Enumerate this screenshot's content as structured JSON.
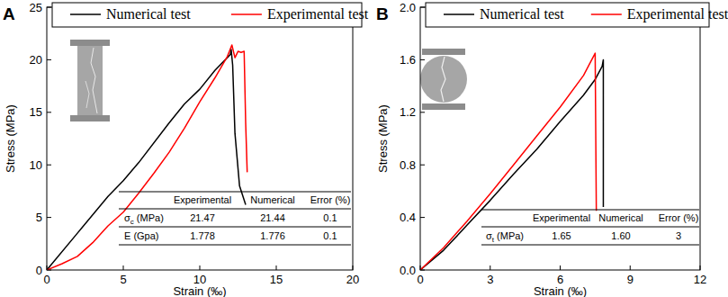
{
  "chart_data": [
    {
      "type": "line",
      "title": "A",
      "x_label": "Strain (‰)",
      "y_label": "Stress (MPa)",
      "xlim": [
        0,
        20
      ],
      "xticks": [
        0,
        5,
        10,
        15,
        20
      ],
      "ylim": [
        0,
        25
      ],
      "yticks": [
        0,
        5,
        10,
        15,
        20,
        25
      ],
      "legend": "top",
      "series": [
        {
          "name": "Numerical test",
          "color": "#000000",
          "x": [
            0,
            2,
            4,
            5,
            6,
            8,
            9,
            10,
            11,
            12,
            12.05,
            12.15,
            12.3,
            12.6,
            13.0
          ],
          "values": [
            0,
            3.5,
            7,
            8.5,
            10.2,
            14,
            15.8,
            17.2,
            19,
            20.5,
            21.0,
            19.5,
            13,
            8,
            6.2
          ]
        },
        {
          "name": "Experimental test",
          "color": "#ff0000",
          "x": [
            0,
            1,
            2,
            3,
            4,
            5,
            6,
            7,
            8,
            9,
            10,
            11,
            11.8,
            12.1,
            12.3,
            12.5,
            12.7,
            12.9,
            13.0,
            13.1
          ],
          "values": [
            0,
            0.6,
            1.3,
            2.6,
            4.2,
            5.5,
            7.3,
            9.2,
            11.2,
            13.5,
            16,
            18.3,
            20.3,
            21.4,
            20.2,
            20.8,
            20.7,
            20.8,
            14,
            9.3
          ]
        }
      ],
      "table": {
        "columns": [
          "Experimental",
          "Numerical",
          "Error (%)"
        ],
        "rows": [
          {
            "label": {
              "main": "σ",
              "sub": "c",
              "rest": " (MPa)"
            },
            "values": [
              21.47,
              21.44,
              0.1
            ]
          },
          {
            "label": {
              "main": "E (Gpa)"
            },
            "values": [
              1.778,
              1.776,
              0.1
            ]
          }
        ]
      }
    },
    {
      "type": "line",
      "title": "B",
      "x_label": "Strain (‰)",
      "y_label": "Stress (MPa)",
      "xlim": [
        0,
        12
      ],
      "xticks": [
        0,
        3,
        6,
        9,
        12
      ],
      "ylim": [
        0,
        2
      ],
      "yticks": [
        {
          "value": 0,
          "label": "0.0"
        },
        0.4,
        0.8,
        1.2,
        1.6,
        {
          "value": 2,
          "label": "2.0"
        }
      ],
      "legend": "top",
      "series": [
        {
          "name": "Numerical test",
          "color": "#000000",
          "x": [
            0,
            1,
            2,
            3,
            4,
            5,
            6,
            7,
            7.5,
            7.8,
            7.85,
            7.85
          ],
          "values": [
            0,
            0.15,
            0.34,
            0.53,
            0.73,
            0.92,
            1.13,
            1.33,
            1.45,
            1.55,
            1.6,
            0.48
          ]
        },
        {
          "name": "Experimental test",
          "color": "#ff0000",
          "x": [
            0,
            1,
            2,
            3,
            4,
            5,
            6,
            7,
            7.5,
            7.55
          ],
          "values": [
            0,
            0.17,
            0.37,
            0.58,
            0.8,
            1.02,
            1.24,
            1.48,
            1.65,
            0.45
          ]
        }
      ],
      "table": {
        "columns": [
          "Experimental",
          "Numerical",
          "Error (%)"
        ],
        "rows": [
          {
            "label": {
              "main": "σ",
              "sub": "t",
              "rest": " (MPa)"
            },
            "values": [
              1.65,
              {
                "value": 1.6,
                "label": "1.60"
              },
              3
            ]
          }
        ]
      }
    }
  ]
}
